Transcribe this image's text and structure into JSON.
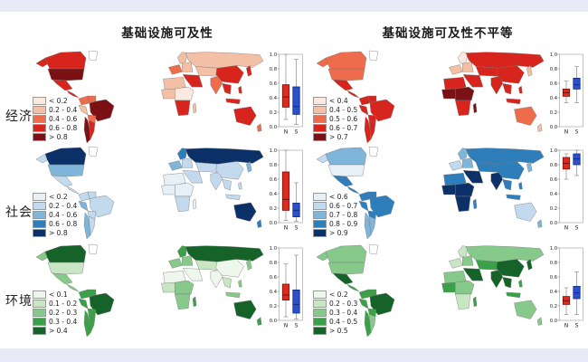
{
  "figure": {
    "col_titles": [
      "基础设施可及性",
      "基础设施可及性不平等"
    ],
    "row_labels": [
      "经济",
      "社会",
      "环境"
    ]
  },
  "color_scales": {
    "red": [
      "#fbe9e0",
      "#f3bfa5",
      "#ee6b4b",
      "#d7241d",
      "#7b1114"
    ],
    "blue": [
      "#e7eff7",
      "#c3d9ed",
      "#7fb5d8",
      "#2e7ebc",
      "#0b3168"
    ],
    "green": [
      "#eef7ec",
      "#c8e6c3",
      "#86c98b",
      "#3ba148",
      "#156329"
    ],
    "nodata": "#ffffff"
  },
  "boxplot_axis": {
    "y_ticks": [
      "1.0",
      "0.8",
      "0.6",
      "0.4",
      "0.2",
      "0.0"
    ],
    "x_labels": [
      "N",
      "S"
    ],
    "ylim": [
      0,
      1
    ],
    "n_color": "#dd2a1e",
    "n_dark": "#7a0f0c",
    "s_color": "#2b50c8",
    "s_dark": "#122a80",
    "whisker_color": "#999999"
  },
  "chart_data": [
    {
      "type": "choropleth+boxplot",
      "id": "economy-accessibility",
      "row": "经济",
      "column": "基础设施可及性",
      "scale": "red",
      "legend": [
        "< 0.2",
        "0.2 - 0.4",
        "0.4 - 0.6",
        "0.6 - 0.8",
        "> 0.8"
      ],
      "west_regions": {
        "alaska": 3,
        "canada": 3,
        "greenland": -1,
        "usa": 4,
        "mexico": 3,
        "centralam": 3,
        "colombia": 2,
        "venezuela": 2,
        "peru": 1,
        "brazil": 4,
        "bolivia": 2,
        "chile": 4,
        "argentina": 3
      },
      "east_regions": {
        "scandinavia": 1,
        "westeurope": 2,
        "easteurope": 1,
        "russia": 1,
        "centralasia": 1,
        "mideast": 3,
        "northafrica": 1,
        "westafrica": 1,
        "centralafrica": 0,
        "southafrica": 3,
        "madagascar": 1,
        "india": 2,
        "china": 3,
        "seasia": 3,
        "indonesia": 3,
        "japan": 3,
        "australia": 3,
        "newzealand": 2
      },
      "box_n": {
        "whisker_low": 0.1,
        "q1": 0.27,
        "median": 0.41,
        "q3": 0.58,
        "whisker_high": 1.0
      },
      "box_s": {
        "whisker_low": 0.03,
        "q1": 0.17,
        "median": 0.28,
        "q3": 0.55,
        "whisker_high": 0.93
      }
    },
    {
      "type": "choropleth+boxplot",
      "id": "economy-inequality",
      "row": "经济",
      "column": "基础设施可及性不平等",
      "scale": "red",
      "legend": [
        "< 0.4",
        "0.4 - 0.5",
        "0.5 - 0.6",
        "0.6 - 0.7",
        "> 0.7"
      ],
      "west_regions": {
        "alaska": 2,
        "canada": 2,
        "greenland": -1,
        "usa": 2,
        "mexico": 3,
        "centralam": 3,
        "colombia": 3,
        "venezuela": 3,
        "peru": 3,
        "brazil": 3,
        "bolivia": 3,
        "chile": 3,
        "argentina": 3
      },
      "east_regions": {
        "scandinavia": 0,
        "westeurope": 1,
        "easteurope": 1,
        "russia": 3,
        "centralasia": 3,
        "mideast": 3,
        "northafrica": 3,
        "westafrica": 4,
        "centralafrica": 4,
        "southafrica": 3,
        "madagascar": 4,
        "india": 3,
        "china": 3,
        "seasia": 3,
        "indonesia": 3,
        "japan": 1,
        "australia": 2,
        "newzealand": 1
      },
      "box_n": {
        "whisker_low": 0.33,
        "q1": 0.42,
        "median": 0.47,
        "q3": 0.52,
        "whisker_high": 0.63
      },
      "box_s": {
        "whisker_low": 0.33,
        "q1": 0.52,
        "median": 0.58,
        "q3": 0.67,
        "whisker_high": 0.83
      }
    },
    {
      "type": "choropleth+boxplot",
      "id": "social-accessibility",
      "row": "社会",
      "column": "基础设施可及性",
      "scale": "blue",
      "legend": [
        "< 0.2",
        "0.2 - 0.4",
        "0.4 - 0.6",
        "0.6 - 0.8",
        "> 0.8"
      ],
      "west_regions": {
        "alaska": 1,
        "canada": 4,
        "greenland": -1,
        "usa": 2,
        "mexico": 1,
        "centralam": 1,
        "colombia": 1,
        "venezuela": 1,
        "peru": 2,
        "brazil": 1,
        "bolivia": 1,
        "chile": 2,
        "argentina": 1
      },
      "east_regions": {
        "scandinavia": 3,
        "westeurope": 2,
        "easteurope": 1,
        "russia": 4,
        "centralasia": 1,
        "mideast": 1,
        "northafrica": 0,
        "westafrica": 0,
        "centralafrica": 0,
        "southafrica": 1,
        "madagascar": 0,
        "india": 1,
        "china": 1,
        "seasia": 1,
        "indonesia": 1,
        "japan": 2,
        "australia": 4,
        "newzealand": 3
      },
      "box_n": {
        "whisker_low": 0.03,
        "q1": 0.17,
        "median": 0.32,
        "q3": 0.7,
        "whisker_high": 1.0
      },
      "box_s": {
        "whisker_low": 0.02,
        "q1": 0.08,
        "median": 0.17,
        "q3": 0.27,
        "whisker_high": 0.55
      }
    },
    {
      "type": "choropleth+boxplot",
      "id": "social-inequality",
      "row": "社会",
      "column": "基础设施可及性不平等",
      "scale": "blue",
      "legend": [
        "< 0.6",
        "0.6 - 0.7",
        "0.7 - 0.8",
        "0.8 - 0.9",
        "> 0.9"
      ],
      "west_regions": {
        "alaska": 1,
        "canada": 2,
        "greenland": -1,
        "usa": 0,
        "mexico": 3,
        "centralam": 3,
        "colombia": 3,
        "venezuela": 3,
        "peru": 3,
        "brazil": 3,
        "bolivia": 3,
        "chile": 2,
        "argentina": 2
      },
      "east_regions": {
        "scandinavia": 2,
        "westeurope": 1,
        "easteurope": 2,
        "russia": 3,
        "centralasia": 3,
        "mideast": 4,
        "northafrica": 3,
        "westafrica": 4,
        "centralafrica": 4,
        "southafrica": 4,
        "madagascar": 3,
        "india": 4,
        "china": 3,
        "seasia": 3,
        "indonesia": 3,
        "japan": 2,
        "australia": 1,
        "newzealand": 2
      },
      "box_n": {
        "whisker_low": 0.6,
        "q1": 0.74,
        "median": 0.82,
        "q3": 0.9,
        "whisker_high": 0.95
      },
      "box_s": {
        "whisker_low": 0.65,
        "q1": 0.8,
        "median": 0.88,
        "q3": 0.95,
        "whisker_high": 1.0
      }
    },
    {
      "type": "choropleth+boxplot",
      "id": "environment-accessibility",
      "row": "环境",
      "column": "基础设施可及性",
      "scale": "green",
      "legend": [
        "< 0.1",
        "0.1 - 0.2",
        "0.2 - 0.3",
        "0.3 - 0.4",
        "> 0.4"
      ],
      "west_regions": {
        "alaska": 2,
        "canada": 4,
        "greenland": -1,
        "usa": 1,
        "mexico": 2,
        "centralam": 2,
        "colombia": 3,
        "venezuela": 3,
        "peru": 3,
        "brazil": 4,
        "bolivia": 3,
        "chile": 3,
        "argentina": 3
      },
      "east_regions": {
        "scandinavia": 3,
        "westeurope": 2,
        "easteurope": 2,
        "russia": 4,
        "centralasia": 1,
        "mideast": 0,
        "northafrica": 0,
        "westafrica": 1,
        "centralafrica": 2,
        "southafrica": 2,
        "madagascar": 3,
        "india": 0,
        "china": 0,
        "seasia": 1,
        "indonesia": 2,
        "japan": 2,
        "australia": 4,
        "newzealand": 3
      },
      "box_n": {
        "whisker_low": 0.05,
        "q1": 0.28,
        "median": 0.35,
        "q3": 0.5,
        "whisker_high": 0.78
      },
      "box_s": {
        "whisker_low": 0.02,
        "q1": 0.1,
        "median": 0.22,
        "q3": 0.42,
        "whisker_high": 0.9
      }
    },
    {
      "type": "choropleth+boxplot",
      "id": "environment-inequality",
      "row": "环境",
      "column": "基础设施可及性不平等",
      "scale": "green",
      "legend": [
        "< 0.2",
        "0.2 - 0.3",
        "0.3 - 0.4",
        "0.4 - 0.5",
        "> 0.5"
      ],
      "west_regions": {
        "alaska": 2,
        "canada": 2,
        "greenland": -1,
        "usa": 2,
        "mexico": 4,
        "centralam": 3,
        "colombia": 3,
        "venezuela": 3,
        "peru": 3,
        "brazil": 4,
        "bolivia": 3,
        "chile": 3,
        "argentina": 2
      },
      "east_regions": {
        "scandinavia": 1,
        "westeurope": 1,
        "easteurope": 2,
        "russia": 2,
        "centralasia": 3,
        "mideast": 4,
        "northafrica": 2,
        "westafrica": 3,
        "centralafrica": 2,
        "southafrica": 1,
        "madagascar": 3,
        "india": 4,
        "china": 4,
        "seasia": 4,
        "indonesia": 3,
        "japan": 4,
        "australia": 2,
        "newzealand": 2
      },
      "box_n": {
        "whisker_low": 0.08,
        "q1": 0.22,
        "median": 0.27,
        "q3": 0.33,
        "whisker_high": 0.45
      },
      "box_s": {
        "whisker_low": 0.08,
        "q1": 0.3,
        "median": 0.38,
        "q3": 0.47,
        "whisker_high": 0.67
      }
    }
  ]
}
